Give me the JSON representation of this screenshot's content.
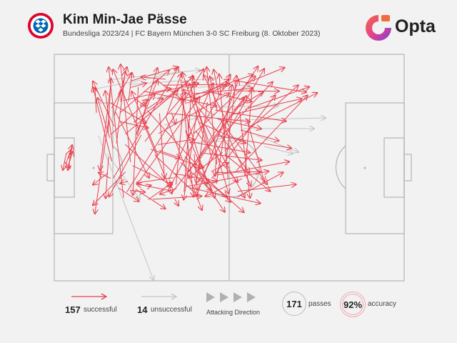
{
  "header": {
    "title": "Kim Min-Jae Pässe",
    "subtitle": "Bundesliga 2023/24 | FC Bayern München 3-0 SC Freiburg (8. Oktober 2023)",
    "brand": "Opta",
    "crest_icon": "fc-bayern-crest-icon",
    "brand_icon": "opta-logo-icon"
  },
  "colors": {
    "background": "#f2f2f2",
    "successful": "#e8414f",
    "unsuccessful": "#c4c4c4",
    "pitch_lines": "#b5b5b5",
    "accuracy_ring": "#f3a7ae"
  },
  "legend": {
    "successful_count": "157",
    "successful_label": "successful",
    "unsuccessful_count": "14",
    "unsuccessful_label": "unsuccessful",
    "direction_label": "Attacking Direction",
    "passes_count": "171",
    "passes_label": "passes",
    "accuracy_value": "92%",
    "accuracy_label": "accuracy"
  }
}
